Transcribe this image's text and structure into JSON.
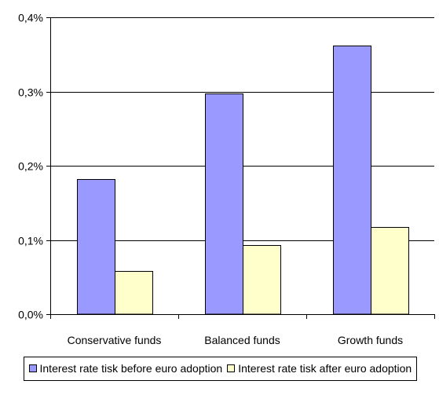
{
  "chart_data": {
    "type": "bar",
    "title": "",
    "xlabel": "",
    "ylabel": "",
    "categories": [
      "Conservative funds",
      "Balanced funds",
      "Growth funds"
    ],
    "ylim": [
      0,
      0.4
    ],
    "yticks": [
      0.0,
      0.1,
      0.2,
      0.3,
      0.4
    ],
    "ytick_labels": [
      "0,0%",
      "0,1%",
      "0,2%",
      "0,3%",
      "0,4%"
    ],
    "grid": true,
    "legend_position": "bottom",
    "series": [
      {
        "name": "Interest rate tisk before euro adoption",
        "values": [
          0.182,
          0.297,
          0.362
        ],
        "color": "#9999ff"
      },
      {
        "name": "Interest rate tisk after euro adoption",
        "values": [
          0.058,
          0.093,
          0.117
        ],
        "color": "#ffffcc"
      }
    ]
  }
}
